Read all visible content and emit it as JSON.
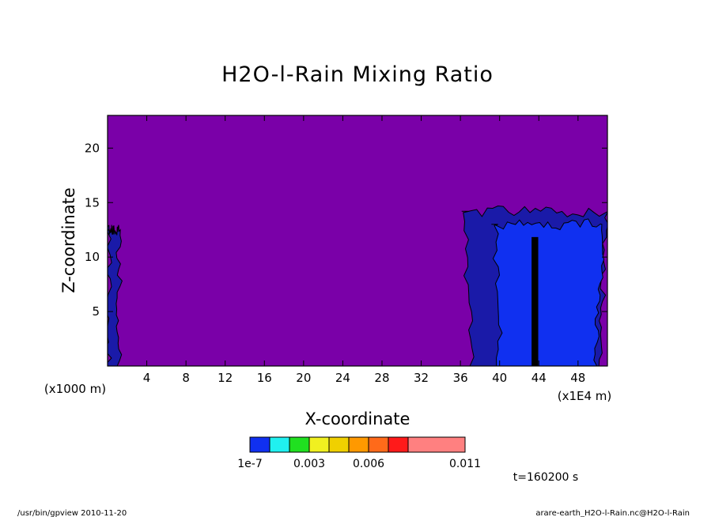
{
  "chart_data": {
    "type": "heatmap",
    "title": "H2O-l-Rain Mixing Ratio",
    "xlabel": "X-coordinate",
    "ylabel": "Z-coordinate",
    "x_unit_label": "(x1E4 m)",
    "y_unit_label": "(x1000 m)",
    "xlim": [
      0,
      51
    ],
    "ylim": [
      0,
      23
    ],
    "x_ticks": [
      4,
      8,
      12,
      16,
      20,
      24,
      28,
      32,
      36,
      40,
      44,
      48
    ],
    "y_ticks": [
      5,
      10,
      15,
      20
    ],
    "colorbar": {
      "levels": [
        "1e-7",
        "0.003",
        "0.006",
        "0.011"
      ],
      "colors": [
        "#1030f0",
        "#20f0f0",
        "#20e020",
        "#f0f020",
        "#f0d000",
        "#ff9900",
        "#ff6a1a",
        "#ff1a1a",
        "#ff8080"
      ],
      "below_color": "#7a00a8"
    },
    "regions": [
      {
        "name": "left-edge",
        "level": "1e-7",
        "x_range": [
          0,
          1.2
        ],
        "z_range": [
          0,
          12.5
        ]
      },
      {
        "name": "storm-outer",
        "level": "1e-7",
        "x_range": [
          36.5,
          51
        ],
        "z_range": [
          0,
          14.2
        ]
      },
      {
        "name": "storm-core",
        "level": "1e-7",
        "x_range": [
          39.5,
          50.5
        ],
        "z_range": [
          0,
          13
        ]
      },
      {
        "name": "storm-column",
        "level": "0.003",
        "x_range": [
          43.3,
          43.9
        ],
        "z_range": [
          0,
          11.8
        ]
      }
    ],
    "time_label": "t=160200 s"
  },
  "footer": {
    "left": "/usr/bin/gpview   2010-11-20",
    "right": "arare-earth_H2O-l-Rain.nc@H2O-l-Rain"
  }
}
